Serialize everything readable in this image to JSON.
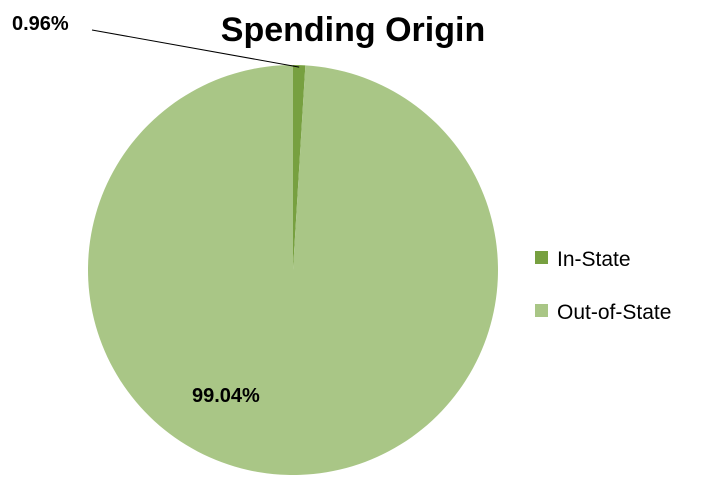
{
  "chart_data": {
    "type": "pie",
    "title": "Spending Origin",
    "categories": [
      "In-State",
      "Out-of-State"
    ],
    "values": [
      0.96,
      99.04
    ],
    "data_labels": [
      "0.96%",
      "99.04%"
    ],
    "colors": [
      "#77a040",
      "#a9c686"
    ],
    "legend": {
      "placement": "right",
      "entries": [
        "In-State",
        "Out-of-State"
      ]
    }
  }
}
